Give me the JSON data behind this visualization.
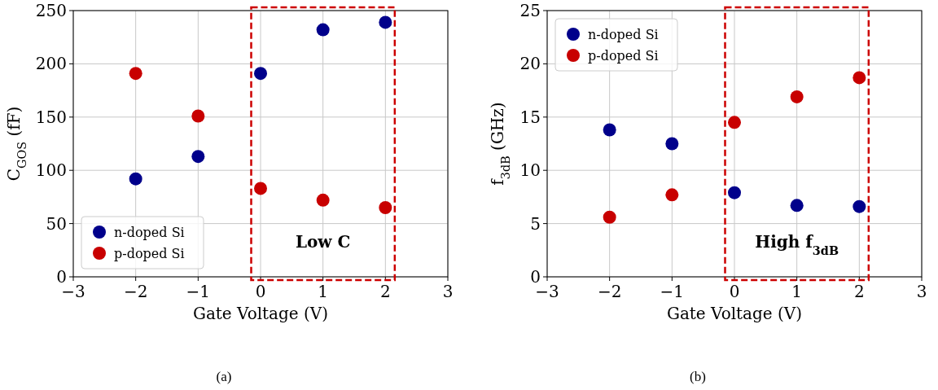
{
  "chart_data": [
    {
      "type": "scatter",
      "xlabel": "Gate Voltage (V)",
      "ylabel": "C$_{GOS}$ (fF)",
      "xlim": [
        -3,
        3
      ],
      "xticks": [
        {
          "value": -3,
          "label": "−3"
        },
        {
          "value": -2,
          "label": "−2"
        },
        {
          "value": -1,
          "label": "−1"
        },
        0,
        1,
        2,
        3
      ],
      "ylim": [
        0,
        250
      ],
      "yticks": [
        0,
        50,
        100,
        150,
        200,
        250
      ],
      "grid": true,
      "legend": "bottom left",
      "marker": "circle",
      "x": [
        -2,
        -1,
        0,
        1,
        2
      ],
      "series": [
        {
          "name": "n-doped Si",
          "color": "#00008b",
          "values": [
            92,
            113,
            191,
            232,
            239
          ]
        },
        {
          "name": "p-doped Si",
          "color": "#c80000",
          "values": [
            191,
            151,
            83,
            72,
            65
          ]
        }
      ],
      "annotations": [
        "(a)",
        "Low C"
      ]
    },
    {
      "type": "scatter",
      "xlabel": "Gate Voltage (V)",
      "ylabel": "f$_{3dB}$ (GHz)",
      "xlim": [
        -3,
        3
      ],
      "xticks": [
        {
          "value": -3,
          "label": "−3"
        },
        {
          "value": -2,
          "label": "−2"
        },
        {
          "value": -1,
          "label": "−1"
        },
        0,
        1,
        2,
        3
      ],
      "ylim": [
        0,
        25
      ],
      "yticks": [
        0,
        5,
        10,
        15,
        20,
        25
      ],
      "grid": true,
      "legend": "top left",
      "marker": "circle",
      "x": [
        -2,
        -1,
        0,
        1,
        2
      ],
      "series": [
        {
          "name": "n-doped Si",
          "color": "#00008b",
          "values": [
            13.8,
            12.5,
            7.9,
            6.7,
            6.6
          ]
        },
        {
          "name": "p-doped Si",
          "color": "#c80000",
          "values": [
            5.6,
            7.7,
            14.5,
            16.9,
            18.7
          ]
        }
      ],
      "annotations": [
        "(b)",
        "High f$_{3dB}$"
      ]
    }
  ]
}
